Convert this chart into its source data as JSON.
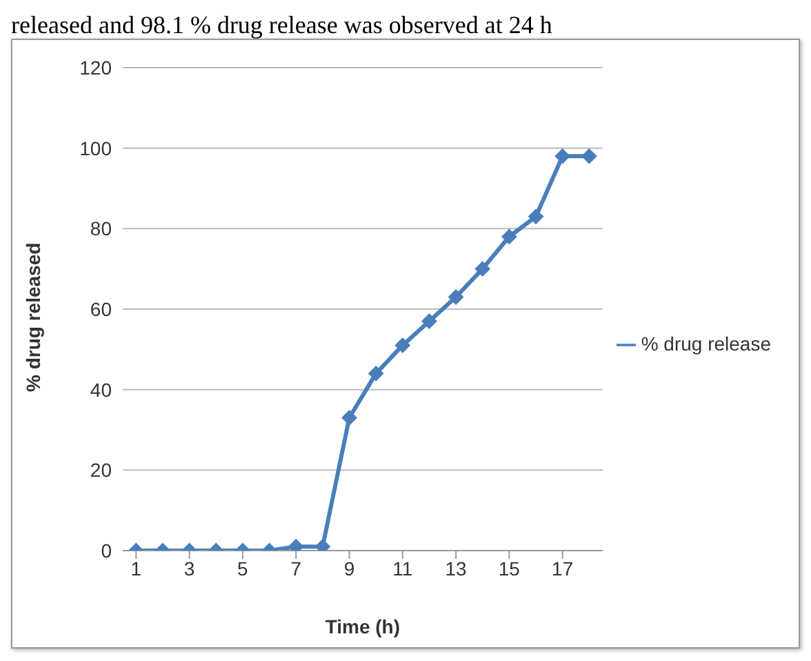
{
  "chart_data": {
    "type": "line",
    "annotations": [
      "released and 98.1 % drug release was observed at 24 h"
    ],
    "xlabel": "Time (h)",
    "ylabel": "% drug released",
    "x": [
      1,
      2,
      3,
      4,
      5,
      6,
      7,
      8,
      9,
      10,
      11,
      12,
      13,
      14,
      15,
      16,
      17,
      18
    ],
    "series": [
      {
        "name": "% drug release",
        "color": "#4a7ebb",
        "values": [
          0,
          0,
          0,
          0,
          0,
          0,
          1,
          1,
          33,
          44,
          51,
          57,
          63,
          70,
          78,
          83,
          98,
          98
        ]
      }
    ],
    "xlim": [
      0.5,
      18.5
    ],
    "xticks": [
      1,
      3,
      5,
      7,
      9,
      11,
      13,
      15,
      17
    ],
    "ylim": [
      0,
      120
    ],
    "yticks": [
      0,
      20,
      40,
      60,
      80,
      100,
      120
    ],
    "grid": "y",
    "legend": "right",
    "marker": "diamond",
    "line_style": "solid"
  }
}
